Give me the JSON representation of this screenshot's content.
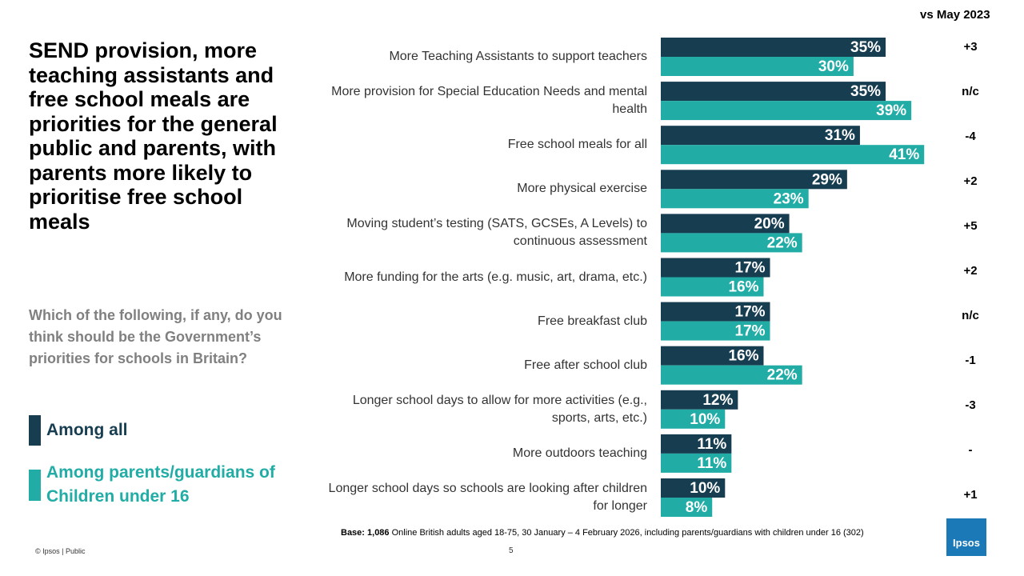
{
  "chart_data": {
    "type": "bar",
    "orientation": "horizontal",
    "title": "SEND provision, more teaching assistants and free school meals are priorities for the general public and parents, with parents more likely to prioritise free school meals",
    "subtitle": "Which of the following, if any, do you think should be the Government’s priorities for schools in Britain?",
    "categories": [
      "More Teaching Assistants to support teachers",
      "More provision for Special Education Needs and mental health",
      "Free school meals for all",
      "More physical exercise",
      "Moving student’s testing (SATS, GCSEs, A Levels) to continuous assessment",
      "More funding for the arts (e.g. music, art, drama, etc.)",
      "Free breakfast club",
      "Free after school club",
      "Longer school days to allow for more activities (e.g., sports, arts, etc.)",
      "More outdoors teaching",
      "Longer school days so schools are looking after children for longer"
    ],
    "series": [
      {
        "name": "Among all",
        "color": "#173d51",
        "values": [
          35,
          35,
          31,
          29,
          20,
          17,
          17,
          16,
          12,
          11,
          10
        ],
        "value_labels": [
          "35%",
          "35%",
          "31%",
          "29%",
          "20%",
          "17%",
          "17%",
          "16%",
          "12%",
          "11%",
          "10%"
        ]
      },
      {
        "name": "Among parents/guardians of Children under 16",
        "color": "#21aca6",
        "values": [
          30,
          39,
          41,
          23,
          22,
          16,
          17,
          22,
          10,
          11,
          8
        ],
        "value_labels": [
          "30%",
          "39%",
          "41%",
          "23%",
          "22%",
          "16%",
          "17%",
          "22%",
          "10%",
          "11%",
          "8%"
        ]
      }
    ],
    "change_header": "vs May 2023",
    "changes": [
      "+3",
      "n/c",
      "-4",
      "+2",
      "+5",
      "+2",
      "n/c",
      "-1",
      "-3",
      "-",
      "+1"
    ]
  },
  "base_label": "Base: 1,086",
  "base_text": "Online British adults aged 18-75, 30 January – 4 February 2026, including parents/guardians with children under 16 (302)",
  "footer": "© Ipsos | Public",
  "page_number": "5",
  "logo": "Ipsos"
}
